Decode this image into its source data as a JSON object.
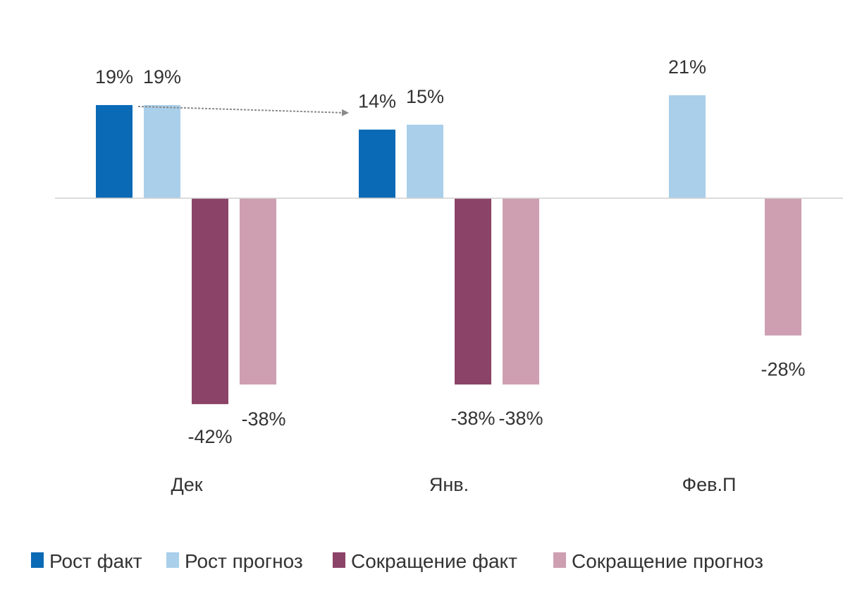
{
  "chart_data": {
    "type": "bar",
    "categories": [
      "Дек",
      "Янв.",
      "Фев.П"
    ],
    "series": [
      {
        "name": "Рост факт",
        "color": "#0a6ab6",
        "values": [
          19,
          14,
          null
        ],
        "labels": [
          "19%",
          "14%",
          ""
        ]
      },
      {
        "name": "Рост прогноз",
        "color": "#a9cfea",
        "values": [
          19,
          15,
          21
        ],
        "labels": [
          "19%",
          "15%",
          "21%"
        ]
      },
      {
        "name": "Сокращение факт",
        "color": "#8c4368",
        "values": [
          -42,
          -38,
          null
        ],
        "labels": [
          "-42%",
          "-38%",
          ""
        ]
      },
      {
        "name": "Сокращение прогноз",
        "color": "#cd9fb1",
        "values": [
          -38,
          -38,
          -28
        ],
        "labels": [
          "-38%",
          "-38%",
          "-28%"
        ]
      }
    ],
    "ylim": [
      -45,
      24
    ],
    "grid": false,
    "legend": "bottom",
    "annotation": {
      "type": "arrow",
      "from_category": "Дек",
      "to_category": "Янв.",
      "color": "#8a8a8a"
    }
  }
}
